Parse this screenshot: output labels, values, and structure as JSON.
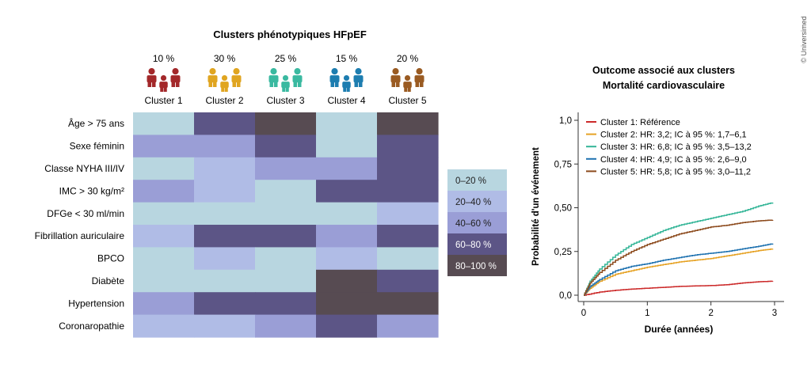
{
  "credit": "© Universimed",
  "chart_data": [
    {
      "type": "heatmap",
      "title": "Clusters phénotypiques HFpEF",
      "columns": [
        {
          "name": "Cluster 1",
          "percent": "10 %",
          "color": "#a3282a"
        },
        {
          "name": "Cluster 2",
          "percent": "30 %",
          "color": "#e0a520"
        },
        {
          "name": "Cluster 3",
          "percent": "25 %",
          "color": "#3ab9a0"
        },
        {
          "name": "Cluster 4",
          "percent": "15 %",
          "color": "#1d7db0"
        },
        {
          "name": "Cluster 5",
          "percent": "20 %",
          "color": "#9a5b22"
        }
      ],
      "rows": [
        "Âge > 75 ans",
        "Sexe féminin",
        "Classe NYHA III/IV",
        "IMC > 30 kg/m²",
        "DFGe < 30 ml/min",
        "Fibrillation auriculaire",
        "BPCO",
        "Diabète",
        "Hypertension",
        "Coronaropathie"
      ],
      "values": [
        [
          0,
          3,
          4,
          0,
          4
        ],
        [
          2,
          2,
          3,
          0,
          3
        ],
        [
          0,
          1,
          2,
          2,
          3
        ],
        [
          2,
          1,
          0,
          3,
          3
        ],
        [
          0,
          0,
          0,
          0,
          1
        ],
        [
          1,
          3,
          3,
          2,
          3
        ],
        [
          0,
          1,
          0,
          1,
          0
        ],
        [
          0,
          0,
          0,
          4,
          3
        ],
        [
          2,
          3,
          3,
          4,
          4
        ],
        [
          1,
          1,
          2,
          3,
          2
        ]
      ],
      "legend": {
        "position": "right",
        "bins": [
          {
            "label": "0–20 %",
            "color": "#b8d6e0",
            "text_color": "#222222"
          },
          {
            "label": "20–40 %",
            "color": "#b0bce6",
            "text_color": "#222222"
          },
          {
            "label": "40–60 %",
            "color": "#9a9ed6",
            "text_color": "#222222"
          },
          {
            "label": "60–80 %",
            "color": "#5c5586",
            "text_color": "#ffffff"
          },
          {
            "label": "80–100 %",
            "color": "#574b52",
            "text_color": "#ffffff"
          }
        ]
      }
    },
    {
      "type": "line",
      "title": "Outcome associé aux clusters",
      "subtitle": "Mortalité cardiovasculaire",
      "xlabel": "Durée (années)",
      "ylabel": "Probabilité d'un événement",
      "xlim": [
        0,
        3
      ],
      "ylim": [
        0,
        1
      ],
      "xticks": [
        0,
        1,
        2,
        3
      ],
      "xtick_labels": [
        "0",
        "1",
        "2",
        "3"
      ],
      "yticks": [
        0,
        0.25,
        0.5,
        0.75,
        1.0
      ],
      "ytick_labels": [
        "0,0",
        "0,25",
        "0,50",
        "0,75",
        "1,0"
      ],
      "grid": false,
      "legend_position": "top-left",
      "series": [
        {
          "name": "Cluster 1: Référence",
          "color": "#cc2a2a",
          "x": [
            0,
            0.25,
            0.5,
            0.75,
            1.0,
            1.25,
            1.5,
            1.75,
            2.0,
            2.25,
            2.5,
            2.75,
            2.97
          ],
          "y": [
            0,
            0.018,
            0.028,
            0.035,
            0.04,
            0.045,
            0.05,
            0.053,
            0.055,
            0.06,
            0.07,
            0.077,
            0.08
          ]
        },
        {
          "name": "Cluster 2: HR: 3,2; IC à 95 %: 1,7–6,1",
          "color": "#e6a224",
          "x": [
            0,
            0.1,
            0.25,
            0.5,
            0.75,
            1.0,
            1.25,
            1.5,
            1.75,
            2.0,
            2.25,
            2.5,
            2.75,
            2.97
          ],
          "y": [
            0,
            0.04,
            0.08,
            0.12,
            0.14,
            0.16,
            0.175,
            0.19,
            0.2,
            0.21,
            0.225,
            0.24,
            0.255,
            0.265
          ]
        },
        {
          "name": "Cluster 3: HR: 6,8; IC à 95 %: 3,5–13,2",
          "color": "#33b597",
          "x": [
            0,
            0.1,
            0.25,
            0.5,
            0.75,
            1.0,
            1.25,
            1.5,
            1.75,
            2.0,
            2.25,
            2.5,
            2.75,
            2.97
          ],
          "y": [
            0,
            0.08,
            0.15,
            0.23,
            0.29,
            0.33,
            0.37,
            0.4,
            0.42,
            0.44,
            0.46,
            0.48,
            0.51,
            0.53
          ]
        },
        {
          "name": "Cluster 4: HR: 4,9; IC à 95 %: 2,6–9,0",
          "color": "#1f72b0",
          "x": [
            0,
            0.1,
            0.25,
            0.5,
            0.75,
            1.0,
            1.25,
            1.5,
            1.75,
            2.0,
            2.25,
            2.5,
            2.75,
            2.97
          ],
          "y": [
            0,
            0.05,
            0.09,
            0.14,
            0.165,
            0.18,
            0.2,
            0.215,
            0.23,
            0.24,
            0.25,
            0.265,
            0.28,
            0.295
          ]
        },
        {
          "name": "Cluster 5: HR: 5,8; IC à 95 %: 3,0–11,2",
          "color": "#8c4a1c",
          "x": [
            0,
            0.1,
            0.25,
            0.5,
            0.75,
            1.0,
            1.25,
            1.5,
            1.75,
            2.0,
            2.25,
            2.5,
            2.75,
            2.97
          ],
          "y": [
            0,
            0.07,
            0.13,
            0.2,
            0.25,
            0.29,
            0.32,
            0.35,
            0.37,
            0.39,
            0.4,
            0.415,
            0.425,
            0.43
          ]
        }
      ]
    }
  ]
}
